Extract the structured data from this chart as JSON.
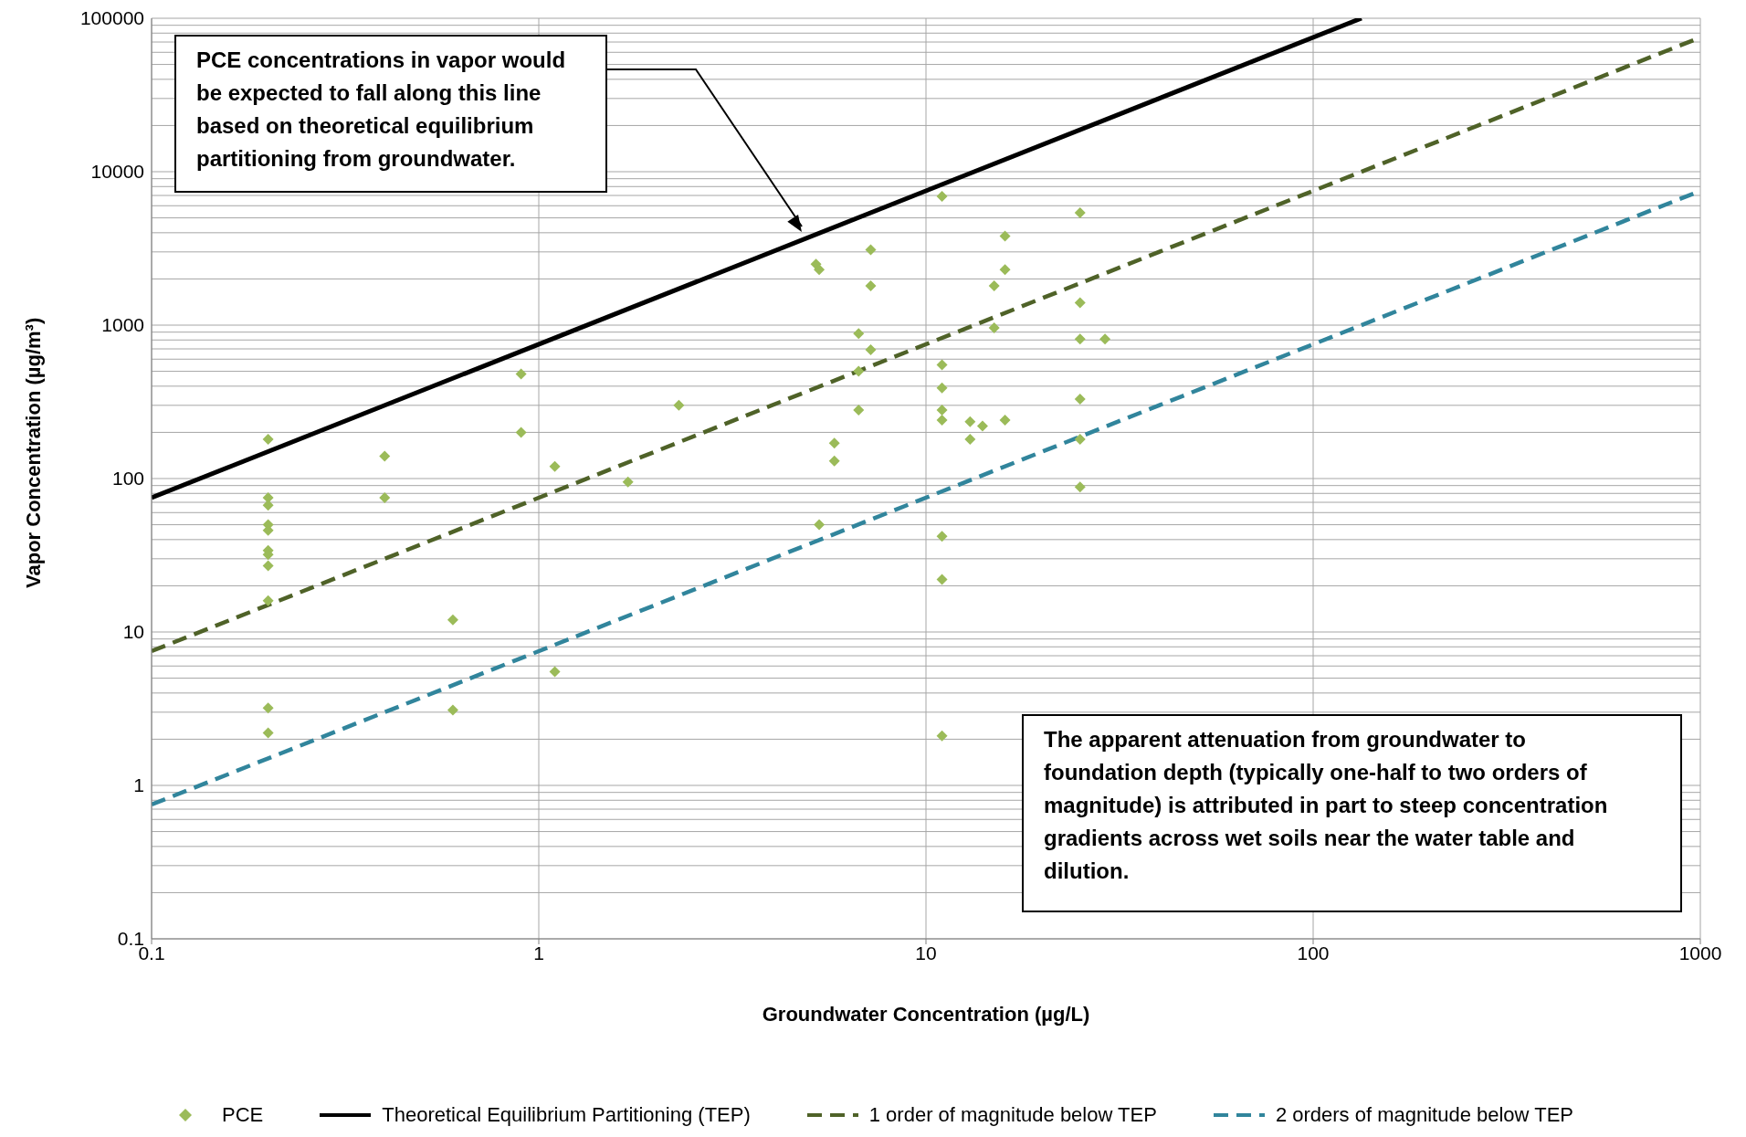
{
  "chart_data": {
    "type": "scatter",
    "xlabel": "Groundwater Concentration (µg/L)",
    "ylabel": "Vapor Concentration (µg/m³)",
    "log": "xy",
    "grid": true,
    "legend": "bottom",
    "xlim": [
      0.1,
      1000
    ],
    "xticks": [
      0.1,
      1,
      10,
      100,
      1000
    ],
    "ylim": [
      0.1,
      100000
    ],
    "yticks": [
      0.1,
      {
        "value": 0.2,
        "label": null
      },
      {
        "value": 0.3,
        "label": null
      },
      {
        "value": 0.4,
        "label": null
      },
      {
        "value": 0.5,
        "label": null
      },
      {
        "value": 0.6,
        "label": null
      },
      {
        "value": 0.7,
        "label": null
      },
      {
        "value": 0.8,
        "label": null
      },
      {
        "value": 0.9,
        "label": null
      },
      1,
      {
        "value": 2,
        "label": null
      },
      {
        "value": 3,
        "label": null
      },
      {
        "value": 4,
        "label": null
      },
      {
        "value": 5,
        "label": null
      },
      {
        "value": 6,
        "label": null
      },
      {
        "value": 7,
        "label": null
      },
      {
        "value": 8,
        "label": null
      },
      {
        "value": 9,
        "label": null
      },
      10,
      {
        "value": 20,
        "label": null
      },
      {
        "value": 30,
        "label": null
      },
      {
        "value": 40,
        "label": null
      },
      {
        "value": 50,
        "label": null
      },
      {
        "value": 60,
        "label": null
      },
      {
        "value": 70,
        "label": null
      },
      {
        "value": 80,
        "label": null
      },
      {
        "value": 90,
        "label": null
      },
      100,
      {
        "value": 200,
        "label": null
      },
      {
        "value": 300,
        "label": null
      },
      {
        "value": 400,
        "label": null
      },
      {
        "value": 500,
        "label": null
      },
      {
        "value": 600,
        "label": null
      },
      {
        "value": 700,
        "label": null
      },
      {
        "value": 800,
        "label": null
      },
      {
        "value": 900,
        "label": null
      },
      1000,
      {
        "value": 2000,
        "label": null
      },
      {
        "value": 3000,
        "label": null
      },
      {
        "value": 4000,
        "label": null
      },
      {
        "value": 5000,
        "label": null
      },
      {
        "value": 6000,
        "label": null
      },
      {
        "value": 7000,
        "label": null
      },
      {
        "value": 8000,
        "label": null
      },
      {
        "value": 9000,
        "label": null
      },
      10000,
      {
        "value": 20000,
        "label": null
      },
      {
        "value": 30000,
        "label": null
      },
      {
        "value": 40000,
        "label": null
      },
      {
        "value": 50000,
        "label": null
      },
      {
        "value": 60000,
        "label": null
      },
      {
        "value": 70000,
        "label": null
      },
      {
        "value": 80000,
        "label": null
      },
      {
        "value": 90000,
        "label": null
      },
      100000
    ],
    "series": [
      {
        "name": "PCE",
        "marker": "diamond",
        "color": "#9bbb59",
        "x": [
          0.2,
          0.2,
          0.2,
          0.2,
          0.2,
          0.2,
          0.2,
          0.2,
          0.2,
          0.2,
          0.2,
          0.4,
          0.4,
          0.6,
          0.6,
          0.9,
          0.9,
          1.1,
          1.1,
          1.7,
          2.3,
          5.2,
          5.3,
          5.3,
          5.8,
          5.8,
          6.7,
          6.7,
          6.7,
          7.2,
          7.2,
          7.2,
          11,
          11,
          11,
          11,
          11,
          11,
          11,
          11,
          13,
          13,
          14,
          15,
          15,
          16,
          16,
          16,
          25,
          25,
          25,
          25,
          25,
          25,
          29
        ],
        "values": [
          180,
          75,
          67,
          50,
          46,
          34,
          32,
          27,
          16,
          3.2,
          2.2,
          140,
          75,
          12,
          3.1,
          480,
          200,
          120,
          5.5,
          95,
          300,
          2500,
          2300,
          50,
          170,
          130,
          880,
          500,
          280,
          3100,
          1800,
          690,
          6900,
          550,
          390,
          280,
          240,
          42,
          22,
          2.1,
          235,
          180,
          220,
          1800,
          960,
          3800,
          2300,
          240,
          5400,
          1400,
          810,
          330,
          180,
          88,
          810
        ]
      },
      {
        "name": "Theoretical Equilibrium Partitioning (TEP)",
        "type": "line",
        "marker": "none",
        "line_style": "solid",
        "color": "#000000",
        "x": [
          0.1,
          133.3
        ],
        "values": [
          75,
          100000
        ]
      },
      {
        "name": "1 order of magnitude below TEP",
        "type": "line",
        "marker": "none",
        "line_style": "dashed",
        "color": "#4f6228",
        "x": [
          0.1,
          1000
        ],
        "values": [
          7.5,
          75000
        ]
      },
      {
        "name": "2 orders of magnitude below TEP",
        "type": "line",
        "marker": "none",
        "line_style": "dashed",
        "color": "#31859c",
        "x": [
          0.1,
          1000
        ],
        "values": [
          0.75,
          7500
        ]
      }
    ],
    "annotations": [
      "PCE concentrations in vapor would be expected  to fall along this line based on theoretical equilibrium partitioning from groundwater.",
      "The apparent attenuation from groundwater to foundation depth (typically one-half to two orders of magnitude) is attributed in part to steep concentration gradients across wet soils near the water table and dilution."
    ]
  }
}
